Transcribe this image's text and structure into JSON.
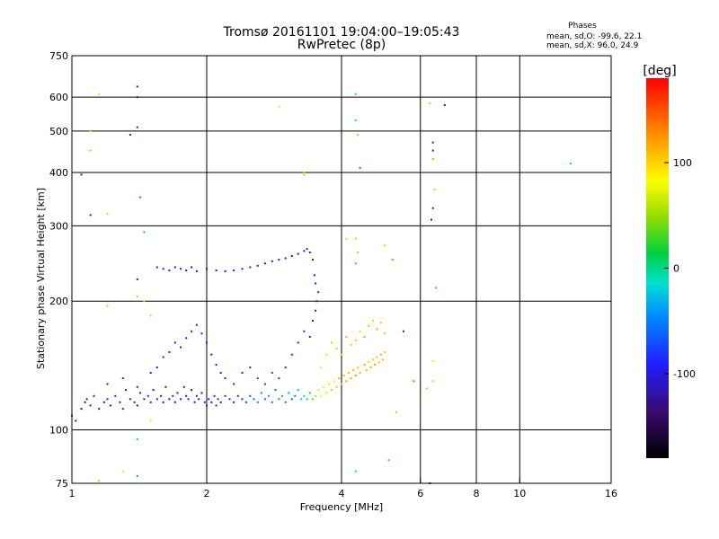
{
  "chart_data": {
    "type": "scatter",
    "title": "Tromsø 20161101 19:04:00–19:05:43",
    "subtitle": "RwPretec (8p)",
    "xlabel": "Frequency [MHz]",
    "ylabel": "Stationary phase Virtual Height [km]",
    "xscale": "log",
    "yscale": "log",
    "xlim": [
      1,
      16
    ],
    "ylim": [
      75,
      750
    ],
    "xticks": [
      1,
      2,
      4,
      6,
      8,
      10,
      16
    ],
    "xtick_labels": [
      "1",
      "2",
      "4",
      "6",
      "8",
      "10",
      "16"
    ],
    "yticks": [
      75,
      100,
      200,
      300,
      400,
      500,
      600,
      750
    ],
    "ytick_labels": [
      "75",
      "100",
      "200",
      "300",
      "400",
      "500",
      "600",
      "750"
    ],
    "x_gridlines": [
      1,
      2,
      4,
      6,
      8,
      10,
      16
    ],
    "y_gridlines": [
      75,
      100,
      200,
      300,
      400,
      500,
      600,
      750
    ],
    "grid": true,
    "stats": {
      "heading": "Phases",
      "line_o": "mean, sd,O: -99.6, 22.1",
      "line_x": "mean, sd,X:  96.0, 24.9"
    },
    "colorbar": {
      "label": "[deg]",
      "ticks": [
        100,
        0,
        -100
      ],
      "tick_labels": [
        "100",
        "0",
        "-100"
      ],
      "range": [
        -180,
        180
      ]
    },
    "points": [
      [
        1.0,
        108,
        -120
      ],
      [
        1.02,
        105,
        -115
      ],
      [
        1.05,
        112,
        -110
      ],
      [
        1.07,
        116,
        -118
      ],
      [
        1.08,
        118,
        -105
      ],
      [
        1.1,
        114,
        -112
      ],
      [
        1.12,
        120,
        -100
      ],
      [
        1.15,
        112,
        -108
      ],
      [
        1.18,
        116,
        -115
      ],
      [
        1.2,
        118,
        -95
      ],
      [
        1.22,
        114,
        -110
      ],
      [
        1.25,
        120,
        -102
      ],
      [
        1.28,
        116,
        -118
      ],
      [
        1.3,
        112,
        -106
      ],
      [
        1.32,
        124,
        -100
      ],
      [
        1.35,
        118,
        -95
      ],
      [
        1.38,
        116,
        -110
      ],
      [
        1.4,
        114,
        -120
      ],
      [
        1.42,
        122,
        -100
      ],
      [
        1.45,
        118,
        -115
      ],
      [
        1.48,
        120,
        -105
      ],
      [
        1.5,
        116,
        -110
      ],
      [
        1.52,
        124,
        -100
      ],
      [
        1.55,
        118,
        -112
      ],
      [
        1.58,
        120,
        -106
      ],
      [
        1.6,
        116,
        -118
      ],
      [
        1.62,
        126,
        -104
      ],
      [
        1.65,
        118,
        -110
      ],
      [
        1.68,
        120,
        -95
      ],
      [
        1.7,
        116,
        -112
      ],
      [
        1.72,
        122,
        -100
      ],
      [
        1.75,
        118,
        -108
      ],
      [
        1.78,
        126,
        -105
      ],
      [
        1.8,
        120,
        -110
      ],
      [
        1.82,
        118,
        -100
      ],
      [
        1.85,
        124,
        -115
      ],
      [
        1.88,
        116,
        -108
      ],
      [
        1.9,
        120,
        -112
      ],
      [
        1.92,
        118,
        -104
      ],
      [
        1.95,
        122,
        -110
      ],
      [
        1.98,
        116,
        -100
      ],
      [
        2.0,
        114,
        -95
      ],
      [
        2.02,
        118,
        -105
      ],
      [
        2.05,
        116,
        -110
      ],
      [
        2.08,
        120,
        -100
      ],
      [
        2.1,
        114,
        -108
      ],
      [
        2.12,
        118,
        -95
      ],
      [
        2.15,
        116,
        -112
      ],
      [
        2.2,
        120,
        -100
      ],
      [
        2.25,
        118,
        -90
      ],
      [
        2.3,
        116,
        -95
      ],
      [
        2.35,
        120,
        -85
      ],
      [
        2.4,
        118,
        -90
      ],
      [
        2.45,
        116,
        -80
      ],
      [
        2.5,
        120,
        -70
      ],
      [
        2.55,
        118,
        -60
      ],
      [
        2.6,
        116,
        -50
      ],
      [
        2.65,
        122,
        -45
      ],
      [
        2.7,
        118,
        -55
      ],
      [
        2.75,
        120,
        -40
      ],
      [
        2.8,
        116,
        -50
      ],
      [
        2.85,
        124,
        -60
      ],
      [
        2.9,
        118,
        -45
      ],
      [
        2.95,
        120,
        -35
      ],
      [
        3.0,
        116,
        -55
      ],
      [
        3.05,
        122,
        -40
      ],
      [
        3.1,
        118,
        -65
      ],
      [
        3.15,
        120,
        -50
      ],
      [
        3.2,
        124,
        -30
      ],
      [
        3.25,
        118,
        -20
      ],
      [
        3.3,
        120,
        -10
      ],
      [
        3.35,
        118,
        0
      ],
      [
        3.4,
        122,
        20
      ],
      [
        3.45,
        118,
        40
      ],
      [
        3.5,
        120,
        60
      ],
      [
        3.55,
        124,
        70
      ],
      [
        3.6,
        120,
        80
      ],
      [
        3.65,
        126,
        75
      ],
      [
        3.7,
        122,
        90
      ],
      [
        3.75,
        128,
        100
      ],
      [
        3.8,
        124,
        110
      ],
      [
        3.85,
        130,
        95
      ],
      [
        3.9,
        126,
        105
      ],
      [
        3.95,
        132,
        115
      ],
      [
        4.0,
        128,
        100
      ],
      [
        4.05,
        134,
        110
      ],
      [
        4.1,
        130,
        120
      ],
      [
        4.15,
        136,
        105
      ],
      [
        4.2,
        132,
        115
      ],
      [
        4.25,
        138,
        110
      ],
      [
        4.3,
        134,
        125
      ],
      [
        4.35,
        140,
        105
      ],
      [
        4.4,
        136,
        115
      ],
      [
        4.5,
        142,
        120
      ],
      [
        4.55,
        138,
        110
      ],
      [
        4.6,
        144,
        100
      ],
      [
        4.65,
        140,
        115
      ],
      [
        4.7,
        146,
        105
      ],
      [
        4.75,
        142,
        120
      ],
      [
        4.8,
        148,
        110
      ],
      [
        4.85,
        144,
        100
      ],
      [
        4.9,
        150,
        115
      ],
      [
        4.95,
        146,
        110
      ],
      [
        5.0,
        152,
        105
      ],
      [
        1.2,
        128,
        -110
      ],
      [
        1.3,
        132,
        -105
      ],
      [
        1.4,
        126,
        -100
      ],
      [
        1.5,
        136,
        -95
      ],
      [
        1.55,
        140,
        -90
      ],
      [
        1.6,
        148,
        -100
      ],
      [
        1.65,
        152,
        -95
      ],
      [
        1.7,
        160,
        -90
      ],
      [
        1.75,
        156,
        -100
      ],
      [
        1.8,
        164,
        -95
      ],
      [
        1.85,
        170,
        -100
      ],
      [
        1.9,
        176,
        -95
      ],
      [
        1.95,
        168,
        -100
      ],
      [
        2.0,
        160,
        -90
      ],
      [
        2.05,
        150,
        -100
      ],
      [
        2.1,
        142,
        -95
      ],
      [
        2.15,
        136,
        -100
      ],
      [
        2.2,
        132,
        -95
      ],
      [
        2.3,
        128,
        -100
      ],
      [
        2.4,
        136,
        -90
      ],
      [
        2.5,
        140,
        -85
      ],
      [
        2.6,
        132,
        -80
      ],
      [
        2.7,
        128,
        -75
      ],
      [
        2.8,
        136,
        -70
      ],
      [
        2.9,
        132,
        -80
      ],
      [
        3.0,
        140,
        -85
      ],
      [
        3.1,
        150,
        -90
      ],
      [
        3.2,
        160,
        -95
      ],
      [
        3.3,
        170,
        -100
      ],
      [
        3.4,
        165,
        -95
      ],
      [
        3.45,
        180,
        -100
      ],
      [
        3.5,
        190,
        -105
      ],
      [
        3.52,
        200,
        -110
      ],
      [
        3.55,
        210,
        -100
      ],
      [
        3.5,
        220,
        -95
      ],
      [
        3.48,
        230,
        -105
      ],
      [
        3.45,
        250,
        -110
      ],
      [
        3.4,
        260,
        -100
      ],
      [
        3.35,
        265,
        -95
      ],
      [
        3.3,
        262,
        -100
      ],
      [
        3.2,
        258,
        -105
      ],
      [
        3.1,
        255,
        -110
      ],
      [
        3.0,
        252,
        -100
      ],
      [
        2.9,
        250,
        -95
      ],
      [
        2.8,
        248,
        -100
      ],
      [
        2.7,
        245,
        -105
      ],
      [
        2.6,
        242,
        -110
      ],
      [
        2.5,
        240,
        -100
      ],
      [
        2.4,
        238,
        -95
      ],
      [
        2.3,
        236,
        -100
      ],
      [
        2.2,
        235,
        -105
      ],
      [
        2.1,
        236,
        -110
      ],
      [
        2.0,
        238,
        -100
      ],
      [
        1.9,
        235,
        -95
      ],
      [
        1.85,
        240,
        -100
      ],
      [
        1.8,
        236,
        -105
      ],
      [
        1.75,
        238,
        -110
      ],
      [
        1.7,
        240,
        -100
      ],
      [
        1.65,
        236,
        -95
      ],
      [
        1.6,
        238,
        -100
      ],
      [
        1.55,
        240,
        -105
      ],
      [
        3.6,
        140,
        85
      ],
      [
        3.7,
        150,
        95
      ],
      [
        3.8,
        160,
        105
      ],
      [
        3.9,
        155,
        110
      ],
      [
        4.0,
        150,
        100
      ],
      [
        4.1,
        165,
        115
      ],
      [
        4.2,
        158,
        105
      ],
      [
        4.3,
        162,
        110
      ],
      [
        4.4,
        170,
        100
      ],
      [
        4.5,
        165,
        120
      ],
      [
        4.6,
        175,
        110
      ],
      [
        4.7,
        180,
        100
      ],
      [
        4.8,
        172,
        115
      ],
      [
        4.9,
        178,
        105
      ],
      [
        5.0,
        168,
        110
      ],
      [
        1.05,
        395,
        -110
      ],
      [
        1.1,
        318,
        -105
      ],
      [
        1.4,
        635,
        -110
      ],
      [
        1.4,
        600,
        -105
      ],
      [
        1.4,
        510,
        -100
      ],
      [
        1.35,
        490,
        -110
      ],
      [
        1.42,
        350,
        160
      ],
      [
        1.45,
        290,
        10
      ],
      [
        1.2,
        320,
        60
      ],
      [
        1.15,
        610,
        100
      ],
      [
        1.1,
        500,
        110
      ],
      [
        1.1,
        450,
        110
      ],
      [
        1.2,
        195,
        110
      ],
      [
        1.4,
        225,
        -110
      ],
      [
        1.4,
        205,
        110
      ],
      [
        1.45,
        200,
        110
      ],
      [
        1.5,
        185,
        110
      ],
      [
        2.9,
        570,
        100
      ],
      [
        3.3,
        400,
        60
      ],
      [
        3.3,
        395,
        50
      ],
      [
        4.3,
        610,
        -20
      ],
      [
        4.3,
        530,
        -20
      ],
      [
        4.35,
        490,
        110
      ],
      [
        4.4,
        410,
        160
      ],
      [
        4.3,
        280,
        110
      ],
      [
        4.35,
        260,
        110
      ],
      [
        4.3,
        245,
        10
      ],
      [
        4.1,
        280,
        100
      ],
      [
        5.0,
        270,
        110
      ],
      [
        5.2,
        250,
        140
      ],
      [
        5.5,
        170,
        -110
      ],
      [
        6.3,
        580,
        110
      ],
      [
        6.4,
        470,
        -110
      ],
      [
        6.4,
        450,
        -110
      ],
      [
        6.4,
        430,
        120
      ],
      [
        6.45,
        365,
        110
      ],
      [
        6.4,
        330,
        -120
      ],
      [
        6.35,
        310,
        -110
      ],
      [
        6.5,
        215,
        140
      ],
      [
        6.8,
        575,
        -120
      ],
      [
        6.4,
        145,
        100
      ],
      [
        6.4,
        130,
        110
      ],
      [
        6.2,
        125,
        110
      ],
      [
        5.8,
        130,
        150
      ],
      [
        5.3,
        110,
        110
      ],
      [
        13.0,
        420,
        -20
      ],
      [
        1.4,
        95,
        -30
      ],
      [
        1.4,
        78,
        -40
      ],
      [
        1.5,
        105,
        100
      ],
      [
        1.3,
        80,
        100
      ],
      [
        1.15,
        76,
        110
      ],
      [
        4.3,
        80,
        -20
      ],
      [
        5.1,
        85,
        -20
      ],
      [
        6.3,
        75,
        -120
      ]
    ]
  }
}
